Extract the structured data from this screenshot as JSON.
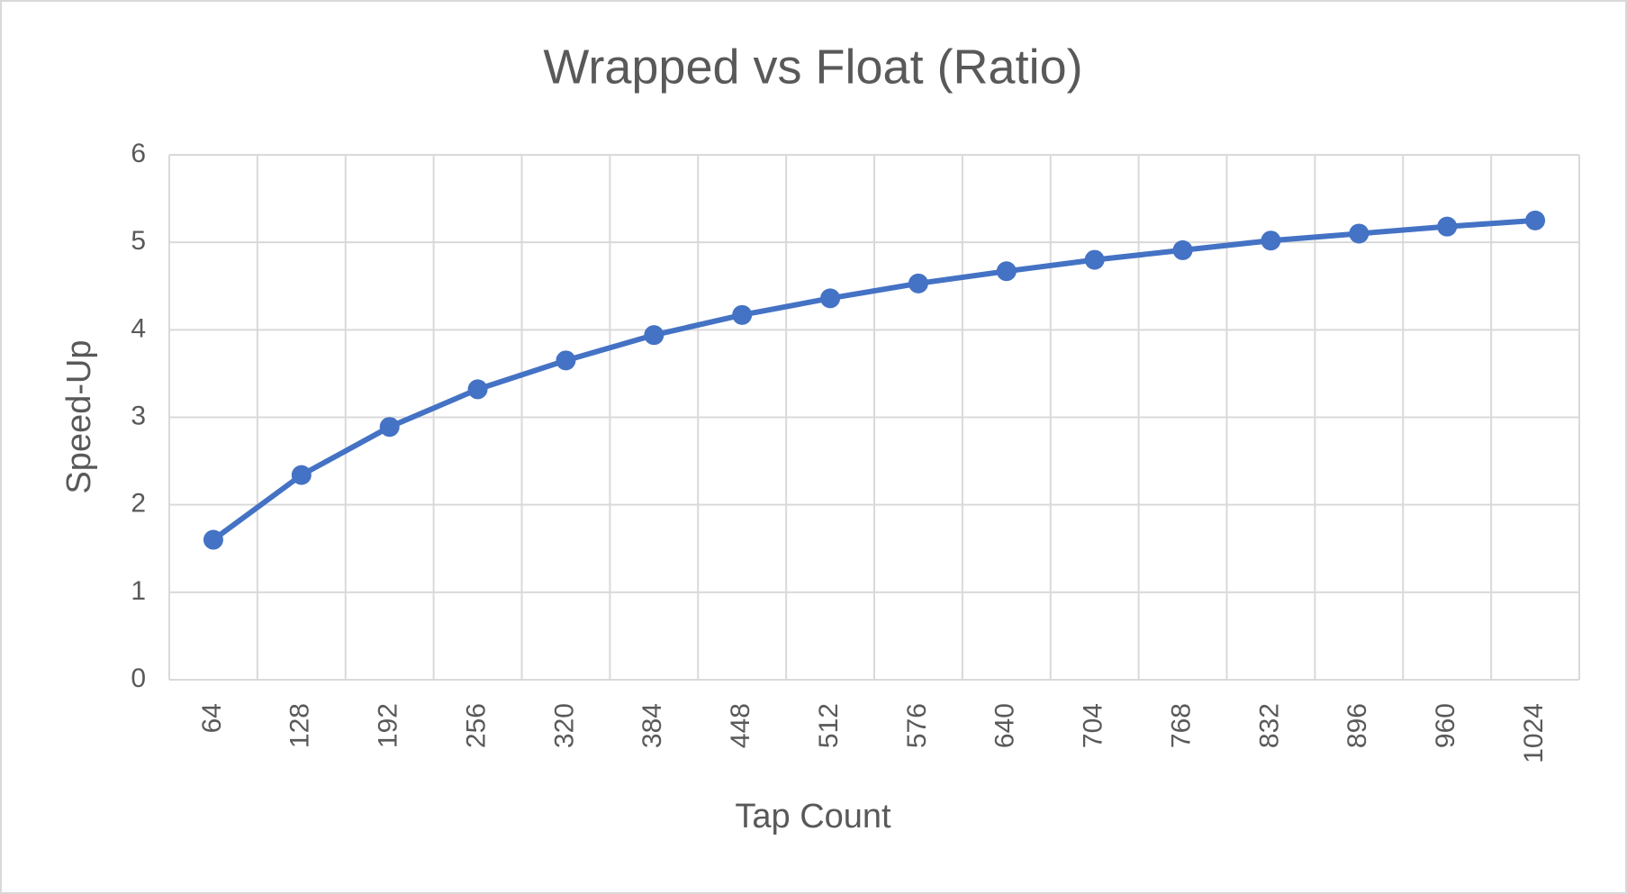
{
  "chart_data": {
    "type": "line",
    "title": "Wrapped vs Float (Ratio)",
    "x_label": "Tap Count",
    "y_label": "Speed-Up",
    "categories": [
      "64",
      "128",
      "192",
      "256",
      "320",
      "384",
      "448",
      "512",
      "576",
      "640",
      "704",
      "768",
      "832",
      "896",
      "960",
      "1024"
    ],
    "series": [
      {
        "name": "Speed-Up",
        "color": "#4472c4",
        "values": [
          1.6,
          2.34,
          2.89,
          3.32,
          3.65,
          3.94,
          4.17,
          4.36,
          4.53,
          4.67,
          4.8,
          4.91,
          5.02,
          5.1,
          5.18,
          5.25
        ]
      }
    ],
    "ylim": [
      0,
      6
    ],
    "yticks": [
      0,
      1,
      2,
      3,
      4,
      5,
      6
    ],
    "grid": true
  }
}
